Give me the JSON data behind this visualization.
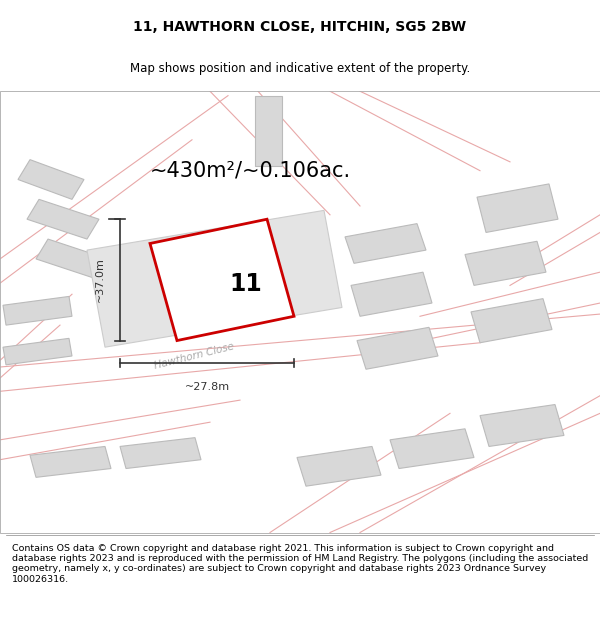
{
  "title": "11, HAWTHORN CLOSE, HITCHIN, SG5 2BW",
  "subtitle": "Map shows position and indicative extent of the property.",
  "area_text": "~430m²/~0.106ac.",
  "dim_width": "~27.8m",
  "dim_height": "~37.0m",
  "house_number": "11",
  "footer": "Contains OS data © Crown copyright and database right 2021. This information is subject to Crown copyright and database rights 2023 and is reproduced with the permission of HM Land Registry. The polygons (including the associated geometry, namely x, y co-ordinates) are subject to Crown copyright and database rights 2023 Ordnance Survey 100026316.",
  "title_fontsize": 10,
  "subtitle_fontsize": 8.5,
  "area_fontsize": 15,
  "dim_fontsize": 8,
  "number_fontsize": 17,
  "footer_fontsize": 6.8,
  "map_bg": "#ffffff",
  "building_fc": "#d8d8d8",
  "building_ec": "#bbbbbb",
  "road_line_color": "#e8a8a8",
  "prop_ec": "#cc0000",
  "prop_fc": "#ffffff",
  "dim_color": "#333333",
  "street_color": "#aaaaaa"
}
